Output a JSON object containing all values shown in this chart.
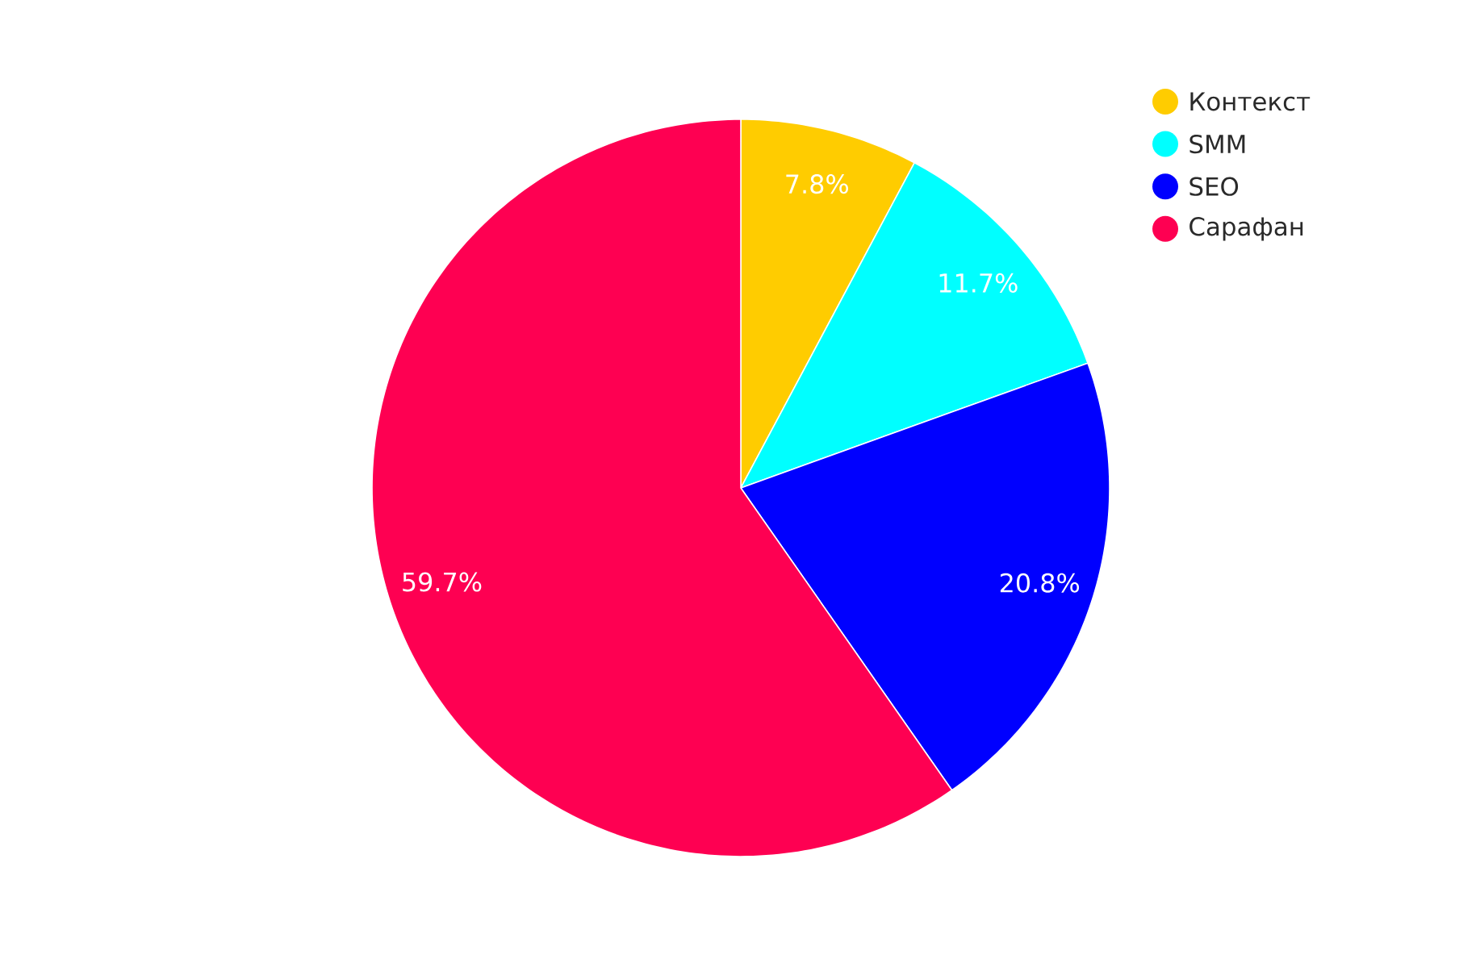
{
  "chart_data": {
    "type": "pie",
    "categories": [
      "Контекст",
      "SMM",
      "SEO",
      "Сарафан"
    ],
    "values": [
      7.8,
      11.7,
      20.8,
      59.7
    ],
    "colors": [
      "#ffcc00",
      "#00ffff",
      "#0000ff",
      "#fe0052"
    ],
    "value_labels": [
      "7.8%",
      "11.7%",
      "20.8%",
      "59.7%"
    ],
    "legend": "top right"
  }
}
